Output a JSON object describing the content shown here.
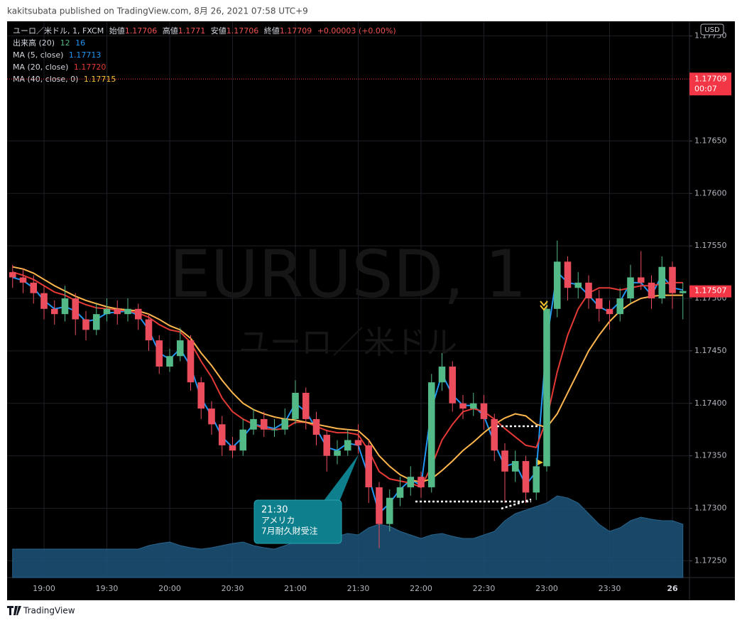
{
  "header": {
    "publisher": "kakitsubata published on TradingView.com, 8月 26, 2021 07:58 UTC+9",
    "brand": "TradingView"
  },
  "chart_data": {
    "type": "candlestick",
    "symbol": "ユーロ／米ドル, 1, FXCM",
    "currency": "USD",
    "watermark": "EURUSD, 1",
    "watermark_sub": "ユーロ／米ドル",
    "ohlc_legend": {
      "labels": [
        "始値",
        "高値",
        "安値",
        "終値"
      ],
      "values": [
        1.17706,
        1.1771,
        1.17706,
        1.17709
      ],
      "change": "+0.00003 (+0.00%)"
    },
    "volume_legend": {
      "name": "出来高 (20)",
      "values": [
        12,
        16
      ]
    },
    "up_color": "#53b987",
    "down_color": "#eb4d5c",
    "x": [
      "18:45",
      "18:50",
      "18:55",
      "19:00",
      "19:05",
      "19:10",
      "19:15",
      "19:20",
      "19:25",
      "19:30",
      "19:35",
      "19:40",
      "19:45",
      "19:50",
      "19:55",
      "20:00",
      "20:05",
      "20:10",
      "20:15",
      "20:20",
      "20:25",
      "20:30",
      "20:35",
      "20:40",
      "20:45",
      "20:50",
      "20:55",
      "21:00",
      "21:05",
      "21:10",
      "21:15",
      "21:20",
      "21:25",
      "21:30",
      "21:35",
      "21:40",
      "21:45",
      "21:50",
      "21:55",
      "22:00",
      "22:05",
      "22:10",
      "22:15",
      "22:20",
      "22:25",
      "22:30",
      "22:35",
      "22:40",
      "22:45",
      "22:50",
      "22:55",
      "23:00",
      "23:05",
      "23:10",
      "23:15",
      "23:20",
      "23:25",
      "23:30",
      "23:35",
      "23:40",
      "23:45",
      "23:50",
      "23:55",
      "00:00",
      "00:05"
    ],
    "open": [
      1.17525,
      1.1752,
      1.17515,
      1.17505,
      1.1749,
      1.17485,
      1.175,
      1.1748,
      1.1747,
      1.17485,
      1.1749,
      1.17485,
      1.1749,
      1.1748,
      1.1746,
      1.17435,
      1.17445,
      1.1746,
      1.1742,
      1.17395,
      1.1738,
      1.1736,
      1.17355,
      1.17375,
      1.17385,
      1.17375,
      1.17375,
      1.17385,
      1.1741,
      1.17385,
      1.1737,
      1.1735,
      1.17355,
      1.17365,
      1.1736,
      1.1732,
      1.17285,
      1.1731,
      1.1732,
      1.1733,
      1.1732,
      1.1742,
      1.17435,
      1.174,
      1.17395,
      1.174,
      1.17385,
      1.17355,
      1.17335,
      1.17345,
      1.17315,
      1.1734,
      1.1749,
      1.17535,
      1.1751,
      1.17515,
      1.175,
      1.1749,
      1.17485,
      1.175,
      1.1752,
      1.17515,
      1.175,
      1.1753,
      1.17505
    ],
    "high": [
      1.17532,
      1.17528,
      1.17522,
      1.17512,
      1.17498,
      1.17512,
      1.17505,
      1.17488,
      1.17495,
      1.175,
      1.17498,
      1.175,
      1.17495,
      1.17485,
      1.17465,
      1.17452,
      1.17472,
      1.17465,
      1.17425,
      1.17402,
      1.17388,
      1.17368,
      1.17385,
      1.17395,
      1.17392,
      1.17385,
      1.17395,
      1.17422,
      1.17415,
      1.17392,
      1.17375,
      1.17365,
      1.17375,
      1.1738,
      1.17365,
      1.17325,
      1.17318,
      1.1733,
      1.1734,
      1.17335,
      1.17428,
      1.17448,
      1.1744,
      1.17408,
      1.1741,
      1.17408,
      1.1739,
      1.17362,
      1.17355,
      1.1735,
      1.17348,
      1.17498,
      1.17555,
      1.1754,
      1.17525,
      1.17522,
      1.17508,
      1.17498,
      1.1751,
      1.17532,
      1.17545,
      1.17522,
      1.1754,
      1.17535,
      1.17515
    ],
    "low": [
      1.1751,
      1.17505,
      1.17495,
      1.1748,
      1.17475,
      1.17478,
      1.17465,
      1.1746,
      1.17465,
      1.17478,
      1.17475,
      1.17478,
      1.1747,
      1.1745,
      1.17428,
      1.1743,
      1.1744,
      1.17412,
      1.17385,
      1.1737,
      1.1735,
      1.17348,
      1.1735,
      1.1737,
      1.17368,
      1.17368,
      1.1737,
      1.1738,
      1.17375,
      1.1736,
      1.17335,
      1.17342,
      1.1735,
      1.17352,
      1.17305,
      1.17262,
      1.17278,
      1.17302,
      1.17312,
      1.1731,
      1.17315,
      1.17412,
      1.17392,
      1.17385,
      1.17388,
      1.17375,
      1.17345,
      1.17305,
      1.17325,
      1.17305,
      1.17308,
      1.17335,
      1.17482,
      1.17498,
      1.175,
      1.1749,
      1.17478,
      1.1747,
      1.17478,
      1.17495,
      1.17508,
      1.1749,
      1.17495,
      1.1749,
      1.1748
    ],
    "close": [
      1.1752,
      1.17515,
      1.17505,
      1.1749,
      1.17485,
      1.175,
      1.1748,
      1.1747,
      1.17485,
      1.1749,
      1.17485,
      1.1749,
      1.1748,
      1.1746,
      1.17435,
      1.17445,
      1.1746,
      1.1742,
      1.17395,
      1.1738,
      1.1736,
      1.17355,
      1.17375,
      1.17385,
      1.17375,
      1.17375,
      1.17385,
      1.1741,
      1.17385,
      1.1737,
      1.1735,
      1.17355,
      1.17365,
      1.1736,
      1.1732,
      1.17285,
      1.1731,
      1.1732,
      1.1733,
      1.1732,
      1.1742,
      1.17435,
      1.174,
      1.17395,
      1.174,
      1.17385,
      1.17355,
      1.17335,
      1.17345,
      1.17315,
      1.1734,
      1.1749,
      1.17535,
      1.1751,
      1.17515,
      1.175,
      1.1749,
      1.17485,
      1.175,
      1.1752,
      1.17515,
      1.175,
      1.1753,
      1.17505,
      1.17507
    ],
    "series": [
      {
        "name": "MA (5, close)",
        "color": "#2196f3",
        "legend_value": 1.17713,
        "values": [
          1.1752,
          1.17517,
          1.1751,
          1.17498,
          1.1749,
          1.17492,
          1.17488,
          1.17478,
          1.1748,
          1.17486,
          1.17487,
          1.17488,
          1.17484,
          1.1747,
          1.17448,
          1.17442,
          1.17452,
          1.17435,
          1.17405,
          1.17388,
          1.17368,
          1.17358,
          1.17368,
          1.1738,
          1.17378,
          1.17376,
          1.17382,
          1.174,
          1.17392,
          1.17376,
          1.17358,
          1.17355,
          1.17362,
          1.1736,
          1.1733,
          1.17295,
          1.17305,
          1.17318,
          1.17327,
          1.17322,
          1.17395,
          1.17428,
          1.17408,
          1.17398,
          1.17398,
          1.17388,
          1.17362,
          1.1734,
          1.17343,
          1.17322,
          1.17335,
          1.1746,
          1.17525,
          1.17515,
          1.17513,
          1.17503,
          1.17492,
          1.17487,
          1.17497,
          1.17515,
          1.17515,
          1.17503,
          1.17522,
          1.1751,
          1.17508
        ]
      },
      {
        "name": "MA (20, close)",
        "color": "#e53935",
        "legend_value": {
          "value": 1.1772,
          "label": "1.17720"
        },
        "values": [
          1.17525,
          1.17522,
          1.17518,
          1.17512,
          1.17506,
          1.17503,
          1.17498,
          1.17494,
          1.17491,
          1.1749,
          1.17489,
          1.17488,
          1.17486,
          1.17482,
          1.17475,
          1.1747,
          1.17468,
          1.17458,
          1.1744,
          1.17425,
          1.17405,
          1.17392,
          1.17385,
          1.1738,
          1.17376,
          1.17375,
          1.17376,
          1.17382,
          1.17382,
          1.17378,
          1.17374,
          1.17372,
          1.17372,
          1.1737,
          1.17355,
          1.17335,
          1.17328,
          1.17326,
          1.17324,
          1.1732,
          1.1734,
          1.17365,
          1.1738,
          1.17392,
          1.17395,
          1.17392,
          1.17385,
          1.17376,
          1.17368,
          1.1736,
          1.17358,
          1.17385,
          1.1743,
          1.17465,
          1.1749,
          1.17505,
          1.1751,
          1.1751,
          1.17508,
          1.1751,
          1.17512,
          1.17512,
          1.17514,
          1.17515,
          1.17515
        ]
      },
      {
        "name": "MA (40, close, 0)",
        "color": "#ffb74d",
        "legend_value": 1.17715,
        "values": [
          1.1753,
          1.17528,
          1.17524,
          1.17518,
          1.17512,
          1.17507,
          1.17502,
          1.17498,
          1.17495,
          1.17492,
          1.1749,
          1.17489,
          1.17488,
          1.17485,
          1.1748,
          1.17474,
          1.1747,
          1.17462,
          1.17448,
          1.17436,
          1.17422,
          1.1741,
          1.174,
          1.17394,
          1.1739,
          1.17387,
          1.17385,
          1.17384,
          1.17382,
          1.1738,
          1.17378,
          1.17376,
          1.17375,
          1.17374,
          1.17365,
          1.1735,
          1.1734,
          1.17332,
          1.17327,
          1.17325,
          1.17328,
          1.17336,
          1.17345,
          1.17355,
          1.17363,
          1.17372,
          1.1738,
          1.17386,
          1.1739,
          1.17388,
          1.1738,
          1.17377,
          1.1739,
          1.1741,
          1.1743,
          1.1745,
          1.17465,
          1.17478,
          1.17488,
          1.17495,
          1.175,
          1.17502,
          1.17503,
          1.17503,
          1.17503
        ]
      }
    ],
    "volume": {
      "color": "#1c4f74",
      "line_color": "#2d6f9c",
      "values": [
        40,
        40,
        40,
        40,
        40,
        40,
        40,
        40,
        40,
        40,
        40,
        40,
        40,
        45,
        48,
        50,
        45,
        42,
        40,
        42,
        45,
        48,
        50,
        45,
        42,
        40,
        45,
        50,
        52,
        50,
        55,
        58,
        62,
        60,
        70,
        75,
        72,
        65,
        60,
        55,
        60,
        62,
        58,
        55,
        55,
        60,
        65,
        80,
        90,
        95,
        100,
        105,
        115,
        112,
        105,
        90,
        75,
        65,
        70,
        80,
        85,
        82,
        80,
        80,
        75
      ]
    },
    "price_line": 1.17709,
    "countdown": "00:07",
    "ylim": [
      1.17234,
      1.17764
    ],
    "yticks": [
      {
        "value": 1.1725,
        "label": "1.17250"
      },
      {
        "value": 1.173,
        "label": "1.17300"
      },
      {
        "value": 1.1735,
        "label": "1.17350"
      },
      {
        "value": 1.174,
        "label": "1.17400"
      },
      {
        "value": 1.1745,
        "label": "1.17450"
      },
      {
        "value": 1.175,
        "label": "1.17500"
      },
      {
        "value": 1.1755,
        "label": "1.17550"
      },
      {
        "value": 1.176,
        "label": "1.17600"
      },
      {
        "value": 1.1765,
        "label": "1.17650"
      },
      {
        "value": 1.1775,
        "label": "1.17750"
      }
    ],
    "xticks": [
      "19:00",
      "19:30",
      "20:00",
      "20:30",
      "21:00",
      "21:30",
      "22:00",
      "22:30",
      "23:00",
      "23:30",
      {
        "value": "00:00",
        "label": "26"
      }
    ],
    "grid": true,
    "annotation": {
      "lines": [
        "21:30",
        "アメリカ",
        "7月耐久財受注"
      ]
    }
  }
}
